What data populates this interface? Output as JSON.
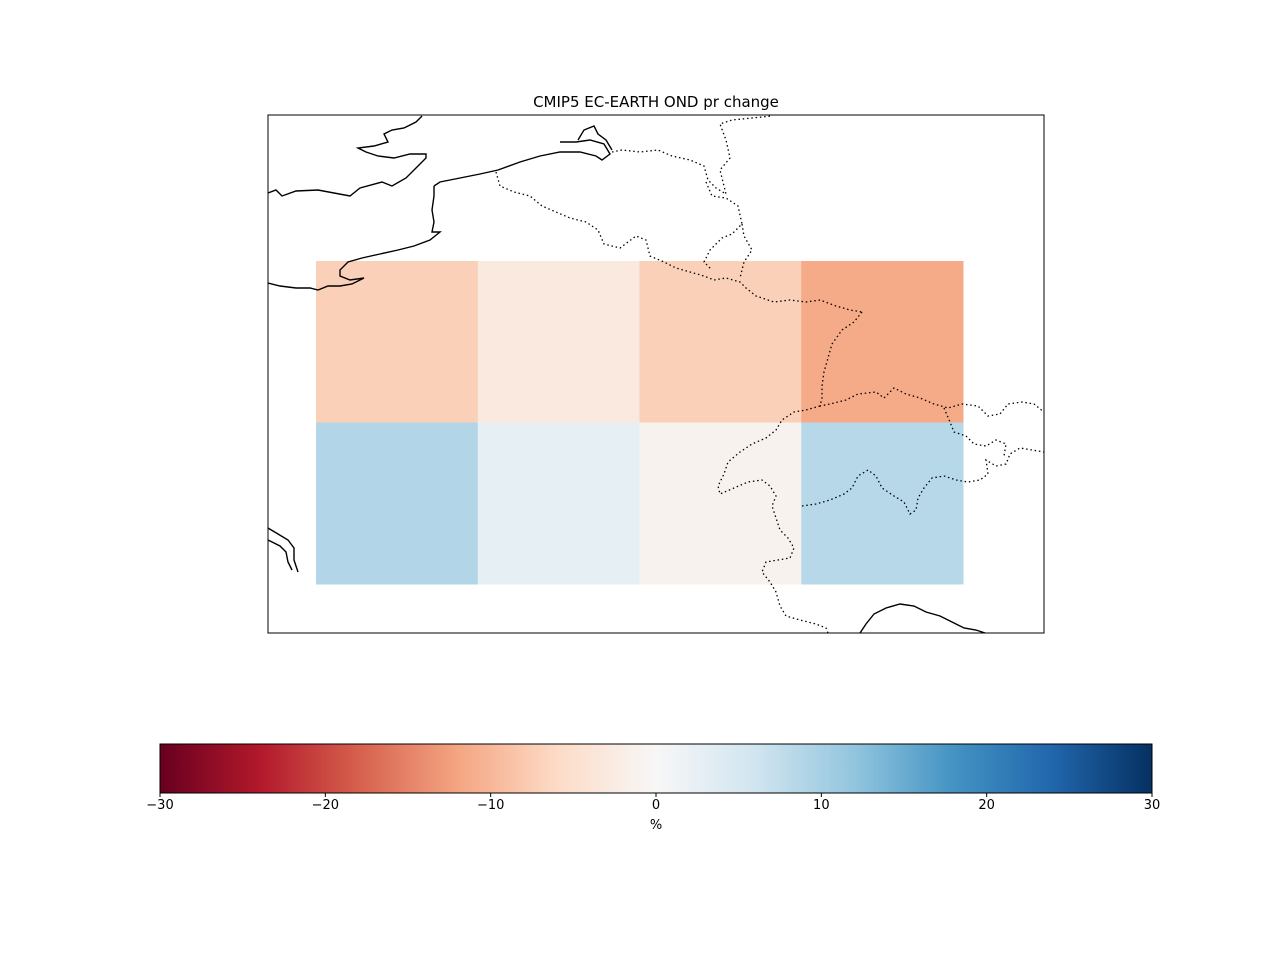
{
  "title": "CMIP5 EC-EARTH OND pr change",
  "grid_cells": [
    {
      "row": 0,
      "col": 0,
      "value": -7.2
    },
    {
      "row": 0,
      "col": 1,
      "value": -3.0
    },
    {
      "row": 0,
      "col": 2,
      "value": -7.2
    },
    {
      "row": 0,
      "col": 3,
      "value": -11.5
    },
    {
      "row": 1,
      "col": 0,
      "value": 9.0
    },
    {
      "row": 1,
      "col": 1,
      "value": 2.8
    },
    {
      "row": 1,
      "col": 2,
      "value": -1.0
    },
    {
      "row": 1,
      "col": 3,
      "value": 8.5
    }
  ],
  "colorbar": {
    "label": "%",
    "min": -30,
    "max": 30,
    "ticks": [
      "−30",
      "−20",
      "−10",
      "0",
      "10",
      "20",
      "30"
    ],
    "colormap": "RdBu",
    "stops": [
      "#67001f",
      "#b2182b",
      "#d6604d",
      "#f4a582",
      "#fddbc7",
      "#f7f7f7",
      "#d1e5f0",
      "#92c5de",
      "#4393c3",
      "#2166ac",
      "#053061"
    ]
  },
  "map_features": {
    "coastline": "solid black",
    "borders": "dotted black"
  }
}
